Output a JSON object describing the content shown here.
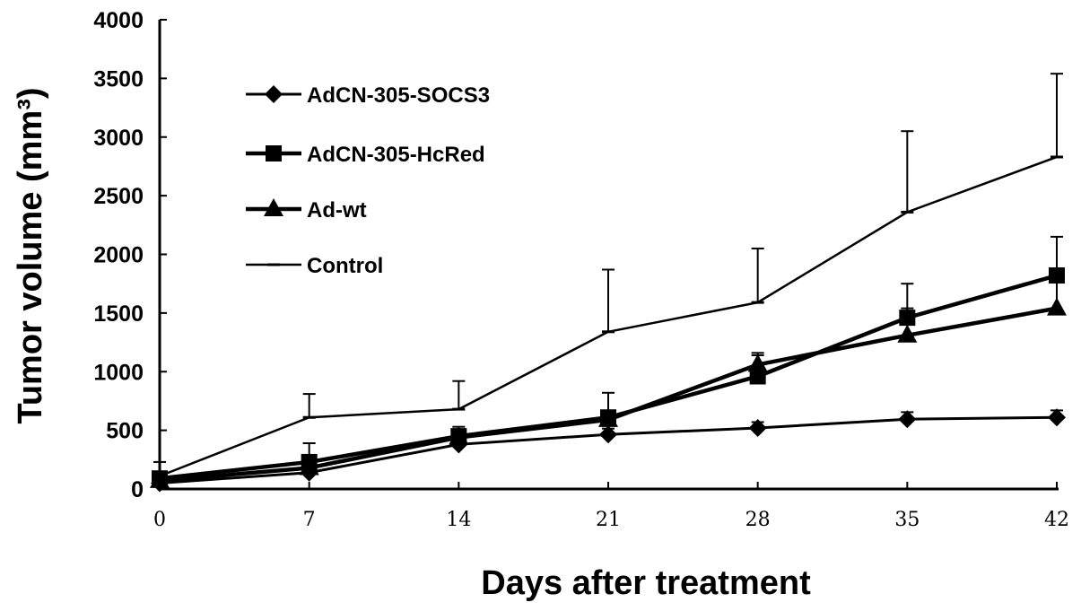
{
  "chart_data": {
    "type": "line",
    "title": "",
    "xlabel": "Days after treatment",
    "ylabel": "Tumor volume (mm³)",
    "x": [
      0,
      7,
      14,
      21,
      28,
      35,
      42
    ],
    "xlim": [
      0,
      42
    ],
    "ylim": [
      0,
      4000
    ],
    "yticks": [
      0,
      500,
      1000,
      1500,
      2000,
      2500,
      3000,
      3500,
      4000
    ],
    "grid": false,
    "legend_position": "top-left",
    "series": [
      {
        "name": "AdCN-305-SOCS3",
        "marker": "diamond",
        "values": [
          50,
          140,
          380,
          465,
          520,
          595,
          610
        ],
        "error": [
          20,
          50,
          60,
          50,
          50,
          60,
          60
        ]
      },
      {
        "name": "AdCN-305-HcRed",
        "marker": "square",
        "values": [
          90,
          230,
          450,
          610,
          960,
          1460,
          1820
        ],
        "error": [
          40,
          160,
          80,
          210,
          180,
          290,
          330
        ]
      },
      {
        "name": "Ad-wt",
        "marker": "triangle",
        "values": [
          70,
          180,
          440,
          590,
          1060,
          1310,
          1540
        ],
        "error": [
          30,
          100,
          70,
          60,
          100,
          230,
          240
        ]
      },
      {
        "name": "Control",
        "marker": "dash",
        "values": [
          110,
          610,
          680,
          1340,
          1590,
          2360,
          2830
        ],
        "error": [
          120,
          200,
          240,
          530,
          460,
          690,
          710
        ]
      }
    ]
  }
}
